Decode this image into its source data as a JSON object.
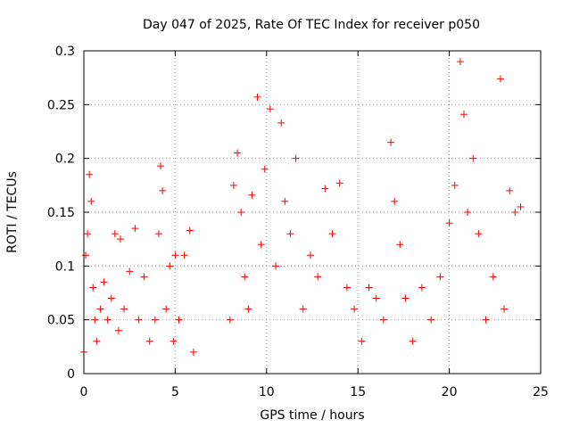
{
  "chart_data": {
    "type": "scatter",
    "title": "Day 047 of 2025, Rate Of TEC Index for receiver p050",
    "xlabel": "GPS time / hours",
    "ylabel": "ROTI / TECUs",
    "xlim": [
      0,
      25
    ],
    "ylim": [
      0,
      0.3
    ],
    "x_ticks": [
      "0",
      "5",
      "10",
      "15",
      "20",
      "25"
    ],
    "y_ticks": [
      "0",
      "0.05",
      "0.1",
      "0.15",
      "0.2",
      "0.25",
      "0.3"
    ],
    "grid": true,
    "marker": "plus",
    "color": "#ff0000",
    "series": [
      {
        "x": [
          0.0,
          0.1,
          0.2,
          0.3,
          0.4,
          0.5,
          0.6,
          0.7,
          0.9,
          1.1,
          1.3,
          1.5,
          1.7,
          1.9,
          2.0,
          2.2,
          2.5,
          2.8,
          3.0,
          3.3,
          3.6,
          3.9,
          4.1,
          4.2,
          4.3,
          4.5,
          4.7,
          4.9,
          5.0,
          5.2,
          5.5,
          5.8,
          6.0,
          8.0,
          8.2,
          8.4,
          8.6,
          8.8,
          9.0,
          9.2,
          9.5,
          9.7,
          9.9,
          10.2,
          10.5,
          10.8,
          11.0,
          11.3,
          11.6,
          12.0,
          12.4,
          12.8,
          13.2,
          13.6,
          14.0,
          14.4,
          14.8,
          15.2,
          15.6,
          16.0,
          16.4,
          16.8,
          17.0,
          17.3,
          17.6,
          18.0,
          18.5,
          19.0,
          19.5,
          20.0,
          20.3,
          20.6,
          20.8,
          21.0,
          21.3,
          21.6,
          22.0,
          22.4,
          22.8,
          23.0,
          23.3,
          23.6,
          23.9
        ],
        "y": [
          0.02,
          0.11,
          0.13,
          0.185,
          0.16,
          0.08,
          0.05,
          0.03,
          0.06,
          0.085,
          0.05,
          0.07,
          0.13,
          0.04,
          0.125,
          0.06,
          0.095,
          0.135,
          0.05,
          0.09,
          0.03,
          0.05,
          0.13,
          0.193,
          0.17,
          0.06,
          0.1,
          0.03,
          0.11,
          0.05,
          0.11,
          0.133,
          0.02,
          0.05,
          0.175,
          0.205,
          0.15,
          0.09,
          0.06,
          0.166,
          0.257,
          0.12,
          0.19,
          0.246,
          0.1,
          0.233,
          0.16,
          0.13,
          0.2,
          0.06,
          0.11,
          0.09,
          0.172,
          0.13,
          0.177,
          0.08,
          0.06,
          0.03,
          0.08,
          0.07,
          0.05,
          0.215,
          0.16,
          0.12,
          0.07,
          0.03,
          0.08,
          0.05,
          0.09,
          0.14,
          0.175,
          0.29,
          0.241,
          0.15,
          0.2,
          0.13,
          0.05,
          0.09,
          0.274,
          0.06,
          0.17,
          0.15,
          0.155
        ]
      }
    ]
  }
}
